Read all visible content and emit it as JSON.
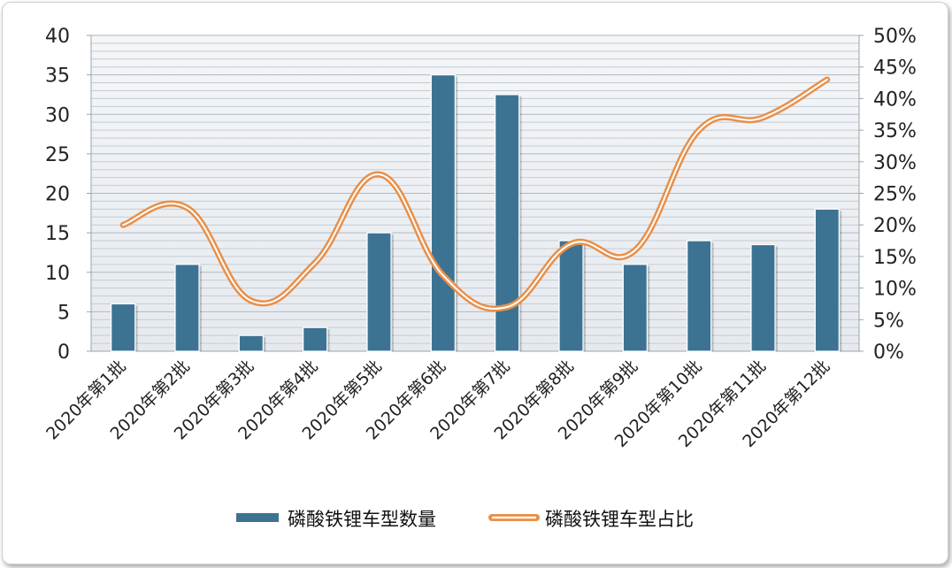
{
  "chart_data": {
    "type": "bar",
    "categories": [
      "2020年第1批",
      "2020年第2批",
      "2020年第3批",
      "2020年第4批",
      "2020年第5批",
      "2020年第6批",
      "2020年第7批",
      "2020年第8批",
      "2020年第9批",
      "2020年第10批",
      "2020年第11批",
      "2020年第12批"
    ],
    "series": [
      {
        "name": "磷酸铁锂车型数量",
        "type": "bar",
        "axis": "left",
        "color": "#3c7393",
        "values": [
          6,
          11,
          2,
          3,
          15,
          35,
          32.5,
          14,
          11,
          14,
          13.5,
          18
        ]
      },
      {
        "name": "磷酸铁锂车型占比",
        "type": "line",
        "axis": "right",
        "color": "#e8904a",
        "values": [
          20,
          22.7,
          8,
          14,
          28,
          12,
          7,
          17,
          16,
          35,
          37,
          43
        ]
      }
    ],
    "y_left": {
      "ylim": [
        0,
        40
      ],
      "ticks": [
        "0",
        "5",
        "10",
        "15",
        "20",
        "25",
        "30",
        "35",
        "40"
      ]
    },
    "y_right": {
      "ylim": [
        0,
        50
      ],
      "ticks": [
        "0%",
        "5%",
        "10%",
        "15%",
        "20%",
        "25%",
        "30%",
        "35%",
        "40%",
        "45%",
        "50%"
      ]
    },
    "grid": true,
    "legend": "bottom"
  }
}
